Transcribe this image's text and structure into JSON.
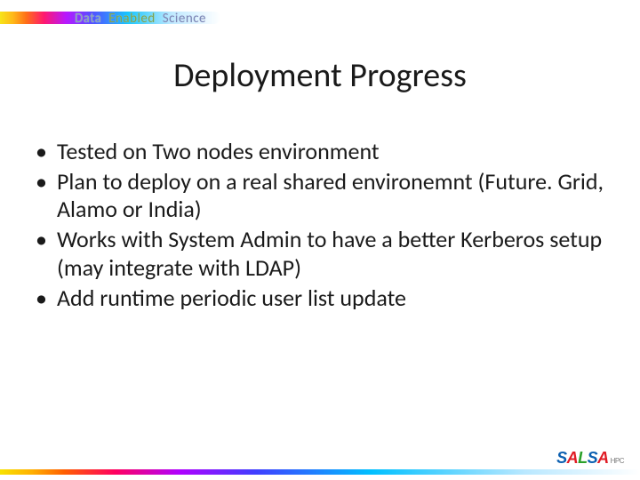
{
  "header": {
    "word1": "Data",
    "word2": "Enabled",
    "word3": "Science",
    "stripe_colors": [
      "#f7e200",
      "#ffb000",
      "#ff5f00",
      "#ff0060",
      "#b000ff",
      "#3f3fff",
      "#00c0ff",
      "#b9e8ff",
      "#ffffff"
    ]
  },
  "title": "Deployment Progress",
  "title_fontsize": 38,
  "bullet_fontsize": 26,
  "bullets": [
    "Tested on Two nodes environment",
    "Plan to deploy on a real shared environemnt (Future. Grid, Alamo or India)",
    "Works with System Admin to have a better Kerberos setup (may integrate with LDAP)",
    "Add runtime periodic user list update"
  ],
  "bottom_bar_colors": [
    "#f7e200",
    "#ffb000",
    "#ff5f00",
    "#ff0060",
    "#b000ff",
    "#3f3fff",
    "#00c0ff",
    "#b9e8ff",
    "#ffffff"
  ],
  "logo": {
    "letters": [
      "S",
      "A",
      "L",
      "S",
      "A"
    ],
    "letter_colors": [
      "#0b5fb0",
      "#e01b24",
      "#2aa02a",
      "#0b5fb0",
      "#e01b24"
    ],
    "suffix": "HPC",
    "suffix_color": "#7a7a7a"
  },
  "background_color": "#ffffff",
  "text_color": "#1a1a1a"
}
